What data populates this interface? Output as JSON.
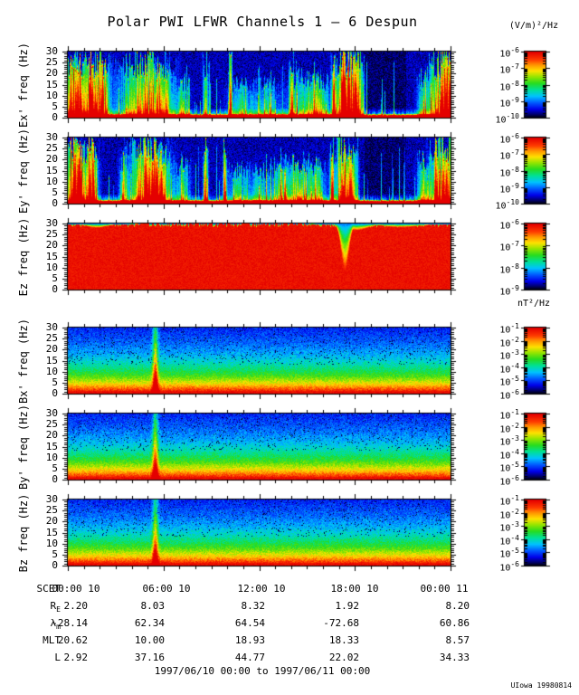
{
  "header": {
    "title": "Polar PWI LFWR Channels 1 – 6 Despun"
  },
  "units": {
    "efield": "(V/m)²/Hz",
    "bfield": "nT²/Hz"
  },
  "footer": {
    "caption": "1997/06/10 00:00 to 1997/06/11 00:00",
    "credit": "UIowa 19980814"
  },
  "chart_data": {
    "type": "heatmap",
    "title": "Polar PWI LFWR Channels 1 – 6 Despun",
    "description": "Six stacked frequency-time spectrograms (0-30 Hz) of electric (Ex', Ey', Ez) and magnetic (Bx', By', Bz) field spectral density over 24 hours",
    "x": {
      "label": "SCET",
      "start": "1997/06/10 00:00",
      "end": "1997/06/11 00:00",
      "tick_hours": [
        0,
        6,
        12,
        18,
        24
      ],
      "tick_labels": [
        "00:00 10",
        "06:00 10",
        "12:00 10",
        "18:00 10",
        "00:00 11"
      ]
    },
    "y": {
      "unit": "Hz",
      "ylim": [
        0,
        30
      ],
      "ticks": [
        30,
        25,
        20,
        15,
        10,
        5,
        0
      ]
    },
    "colormap": "rainbow (red = high spectral density, blue = low)",
    "panels": [
      {
        "id": "ex",
        "ylabel": "Ex' freq (Hz)",
        "style": "efield",
        "seed": 11,
        "cbar_unit": "(V/m)²/Hz",
        "cbar_exponents": [
          -6,
          -7,
          -8,
          -9,
          -10
        ],
        "dark": [
          0.775,
          0.885
        ],
        "events": [
          {
            "x": 0.01,
            "w": 0.01,
            "amp": 1.15,
            "reach": 1.0
          },
          {
            "x": 0.032,
            "w": 0.008,
            "amp": 1.05,
            "reach": 0.95
          },
          {
            "x": 0.058,
            "w": 0.01,
            "amp": 1.15,
            "reach": 1.0
          },
          {
            "x": 0.088,
            "w": 0.013,
            "amp": 1.05,
            "reach": 1.0
          },
          {
            "x": 0.195,
            "w": 0.04,
            "amp": 0.78,
            "reach": 1.0
          },
          {
            "x": 0.25,
            "w": 0.018,
            "amp": 0.55,
            "reach": 0.85
          },
          {
            "x": 0.3,
            "w": 0.01,
            "amp": 0.5,
            "reach": 0.6
          },
          {
            "x": 0.36,
            "w": 0.004,
            "amp": 0.9,
            "reach": 1.0
          },
          {
            "x": 0.425,
            "w": 0.003,
            "amp": 0.85,
            "reach": 1.0
          },
          {
            "x": 0.455,
            "w": 0.022,
            "amp": 0.42,
            "reach": 0.55
          },
          {
            "x": 0.52,
            "w": 0.02,
            "amp": 0.4,
            "reach": 0.55
          },
          {
            "x": 0.585,
            "w": 0.004,
            "amp": 0.8,
            "reach": 1.0
          },
          {
            "x": 0.615,
            "w": 0.028,
            "amp": 0.52,
            "reach": 0.7
          },
          {
            "x": 0.66,
            "w": 0.018,
            "amp": 0.5,
            "reach": 0.6
          },
          {
            "x": 0.695,
            "w": 0.004,
            "amp": 0.95,
            "reach": 1.0
          },
          {
            "x": 0.716,
            "w": 0.01,
            "amp": 1.15,
            "reach": 1.0
          },
          {
            "x": 0.737,
            "w": 0.008,
            "amp": 1.0,
            "reach": 1.0
          },
          {
            "x": 0.757,
            "w": 0.01,
            "amp": 1.15,
            "reach": 1.0
          },
          {
            "x": 0.93,
            "w": 0.01,
            "amp": 0.55,
            "reach": 0.7
          },
          {
            "x": 0.968,
            "w": 0.015,
            "amp": 0.85,
            "reach": 0.95
          },
          {
            "x": 0.995,
            "w": 0.01,
            "amp": 1.05,
            "reach": 1.0
          }
        ]
      },
      {
        "id": "ey",
        "ylabel": "Ey' freq (Hz)",
        "style": "efield",
        "seed": 23,
        "cbar_unit": "(V/m)²/Hz",
        "cbar_exponents": [
          -6,
          -7,
          -8,
          -9,
          -10
        ],
        "dark": [
          0.775,
          0.885
        ],
        "events": [
          {
            "x": 0.008,
            "w": 0.01,
            "amp": 1.15,
            "reach": 1.0
          },
          {
            "x": 0.03,
            "w": 0.009,
            "amp": 1.1,
            "reach": 1.0
          },
          {
            "x": 0.06,
            "w": 0.011,
            "amp": 1.15,
            "reach": 1.0
          },
          {
            "x": 0.145,
            "w": 0.006,
            "amp": 0.6,
            "reach": 0.8
          },
          {
            "x": 0.205,
            "w": 0.03,
            "amp": 0.95,
            "reach": 1.0
          },
          {
            "x": 0.24,
            "w": 0.02,
            "amp": 0.65,
            "reach": 0.9
          },
          {
            "x": 0.3,
            "w": 0.012,
            "amp": 0.5,
            "reach": 0.65
          },
          {
            "x": 0.36,
            "w": 0.004,
            "amp": 0.85,
            "reach": 1.0
          },
          {
            "x": 0.41,
            "w": 0.003,
            "amp": 0.85,
            "reach": 1.0
          },
          {
            "x": 0.445,
            "w": 0.02,
            "amp": 0.45,
            "reach": 0.6
          },
          {
            "x": 0.505,
            "w": 0.018,
            "amp": 0.42,
            "reach": 0.55
          },
          {
            "x": 0.555,
            "w": 0.015,
            "amp": 0.45,
            "reach": 0.6
          },
          {
            "x": 0.6,
            "w": 0.025,
            "amp": 0.6,
            "reach": 0.75
          },
          {
            "x": 0.65,
            "w": 0.015,
            "amp": 0.55,
            "reach": 0.65
          },
          {
            "x": 0.69,
            "w": 0.004,
            "amp": 0.9,
            "reach": 1.0
          },
          {
            "x": 0.72,
            "w": 0.012,
            "amp": 1.15,
            "reach": 1.0
          },
          {
            "x": 0.745,
            "w": 0.008,
            "amp": 1.05,
            "reach": 1.0
          },
          {
            "x": 0.93,
            "w": 0.01,
            "amp": 0.6,
            "reach": 0.75
          },
          {
            "x": 0.965,
            "w": 0.012,
            "amp": 0.9,
            "reach": 1.0
          },
          {
            "x": 0.993,
            "w": 0.01,
            "amp": 1.1,
            "reach": 1.0
          }
        ]
      },
      {
        "id": "ez",
        "ylabel": "Ez freq (Hz)",
        "style": "sat",
        "seed": 37,
        "cbar_unit": "(V/m)²/Hz",
        "cbar_exponents": [
          -6,
          -7,
          -8,
          -9
        ],
        "notches": [
          {
            "x": 0.725,
            "w": 0.01,
            "depth": 0.72
          },
          {
            "x": 0.755,
            "w": 0.03,
            "depth": 0.1
          },
          {
            "x": 0.075,
            "w": 0.025,
            "depth": 0.06
          },
          {
            "x": 0.87,
            "w": 0.05,
            "depth": 0.05
          }
        ]
      },
      {
        "id": "bx",
        "ylabel": "Bx' freq (Hz)",
        "style": "bfield",
        "seed": 51,
        "cbar_unit": "nT²/Hz",
        "cbar_exponents": [
          -1,
          -2,
          -3,
          -4,
          -5,
          -6
        ],
        "spike": {
          "x": 0.228,
          "w": 0.005,
          "amp": 0.55
        }
      },
      {
        "id": "by",
        "ylabel": "By' freq (Hz)",
        "style": "bfield",
        "seed": 67,
        "cbar_unit": "nT²/Hz",
        "cbar_exponents": [
          -1,
          -2,
          -3,
          -4,
          -5,
          -6
        ],
        "spike": {
          "x": 0.228,
          "w": 0.005,
          "amp": 0.5
        }
      },
      {
        "id": "bz",
        "ylabel": "Bz freq (Hz)",
        "style": "bfield",
        "seed": 83,
        "cbar_unit": "nT²/Hz",
        "cbar_exponents": [
          -1,
          -2,
          -3,
          -4,
          -5,
          -6
        ],
        "spike": {
          "x": 0.228,
          "w": 0.005,
          "amp": 0.48
        }
      }
    ],
    "ephemeris": {
      "rows": [
        {
          "label": "SCET",
          "sub": "",
          "values": [
            "00:00 10",
            "06:00 10",
            "12:00 10",
            "18:00 10",
            "00:00 11"
          ]
        },
        {
          "label": "R",
          "sub": "E",
          "values": [
            "2.20",
            "8.03",
            "8.32",
            "1.92",
            "8.20"
          ]
        },
        {
          "label": "λ",
          "sub": "m",
          "values": [
            "-28.14",
            "62.34",
            "64.54",
            "-72.68",
            "60.86"
          ]
        },
        {
          "label": "MLT",
          "sub": "",
          "values": [
            "20.62",
            "10.00",
            "18.93",
            "18.33",
            "8.57"
          ]
        },
        {
          "label": "L",
          "sub": "",
          "values": [
            "2.92",
            "37.16",
            "44.77",
            "22.02",
            "34.33"
          ]
        }
      ]
    }
  }
}
